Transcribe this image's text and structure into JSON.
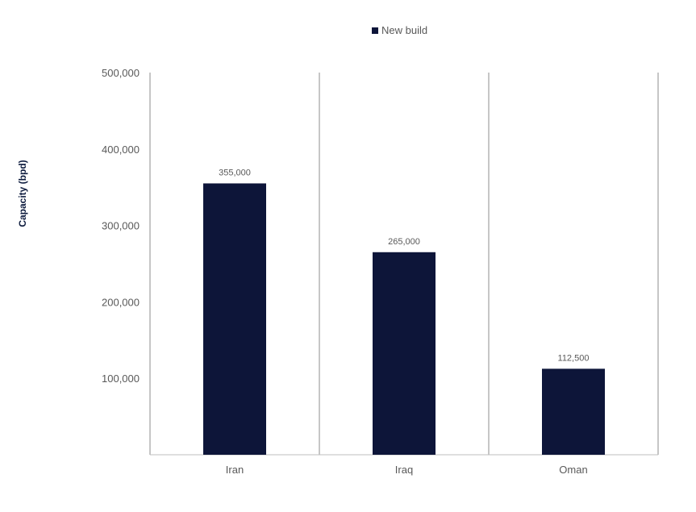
{
  "chart_data": {
    "type": "bar",
    "categories": [
      "Iran",
      "Iraq",
      "Oman"
    ],
    "series": [
      {
        "name": "New build",
        "values": [
          355000,
          265000,
          112500
        ],
        "value_labels": [
          "355,000",
          "265,000",
          "112,500"
        ],
        "color": "#0d1539"
      }
    ],
    "ylabel": "Capacity (bpd)",
    "ylim": [
      0,
      500000
    ],
    "y_ticks": [
      100000,
      200000,
      300000,
      400000,
      500000
    ],
    "y_tick_labels": [
      "100,000",
      "200,000",
      "300,000",
      "400,000",
      "500,000"
    ],
    "legend_position": "top-center",
    "grid": "vertical category separators"
  }
}
